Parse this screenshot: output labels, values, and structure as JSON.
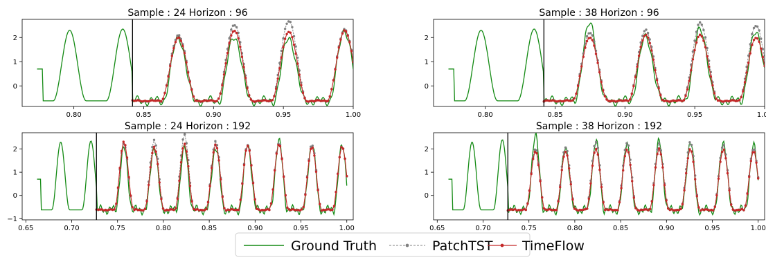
{
  "legend": {
    "items": [
      {
        "label": "Ground Truth",
        "color": "#138a13",
        "marker": "none",
        "style": "solid"
      },
      {
        "label": "PatchTST",
        "color": "#808080",
        "marker": "circle",
        "style": "dashed"
      },
      {
        "label": "TimeFlow",
        "color": "#c42828",
        "marker": "circle",
        "style": "solid"
      }
    ]
  },
  "chart_data": [
    {
      "type": "line",
      "title": "Sample : 24 Horizon : 96",
      "xlim": [
        0.763,
        1.0
      ],
      "ylim": [
        -0.85,
        2.75
      ],
      "xticks": [
        0.8,
        0.85,
        0.9,
        0.95,
        1.0
      ],
      "xticklabels": [
        "0.80",
        "0.85",
        "0.90",
        "0.95",
        "1.00"
      ],
      "yticks": [
        0,
        1,
        2
      ],
      "yticklabels": [
        "0",
        "1",
        "2"
      ],
      "forecast_start": 0.842,
      "peaks": [
        0.875,
        0.915,
        0.954,
        0.994
      ],
      "peak_heights": {
        "ground_truth": [
          2.0,
          2.05,
          2.0,
          2.3
        ],
        "patchtst": [
          2.1,
          2.55,
          2.7,
          2.35
        ],
        "timeflow": [
          2.0,
          2.3,
          2.25,
          2.3
        ]
      },
      "series": [
        {
          "name": "Ground Truth",
          "history_peaks": [
            0.797,
            0.835
          ],
          "history_heights": [
            2.3,
            2.35
          ]
        },
        {
          "name": "PatchTST"
        },
        {
          "name": "TimeFlow"
        }
      ],
      "grid": false
    },
    {
      "type": "line",
      "title": "Sample : 38 Horizon : 96",
      "xlim": [
        0.763,
        1.0
      ],
      "ylim": [
        -0.85,
        2.75
      ],
      "xticks": [
        0.8,
        0.85,
        0.9,
        0.95,
        1.0
      ],
      "xticklabels": [
        "0.80",
        "0.85",
        "0.90",
        "0.95",
        "1.00"
      ],
      "yticks": [
        0,
        1,
        2
      ],
      "yticklabels": [
        "0",
        "1",
        "2"
      ],
      "forecast_start": 0.842,
      "peaks": [
        0.875,
        0.915,
        0.954,
        0.994
      ],
      "peak_heights": {
        "ground_truth": [
          2.55,
          2.0,
          2.3,
          2.2
        ],
        "patchtst": [
          2.2,
          2.3,
          2.6,
          2.5
        ],
        "timeflow": [
          2.0,
          2.1,
          2.1,
          2.0
        ]
      },
      "series": [
        {
          "name": "Ground Truth",
          "history_peaks": [
            0.797,
            0.835
          ],
          "history_heights": [
            2.3,
            2.35
          ]
        },
        {
          "name": "PatchTST"
        },
        {
          "name": "TimeFlow"
        }
      ],
      "grid": false
    },
    {
      "type": "line",
      "title": "Sample : 24 Horizon : 192",
      "xlim": [
        0.646,
        1.007
      ],
      "ylim": [
        -1.05,
        2.7
      ],
      "xticks": [
        0.65,
        0.7,
        0.75,
        0.8,
        0.85,
        0.9,
        0.95,
        1.0
      ],
      "xticklabels": [
        "0.65",
        "0.70",
        "0.75",
        "0.80",
        "0.85",
        "0.90",
        "0.95",
        "1.00"
      ],
      "yticks": [
        -1,
        0,
        1,
        2
      ],
      "yticklabels": [
        "−1",
        "0",
        "1",
        "2"
      ],
      "forecast_start": 0.727,
      "peaks": [
        0.757,
        0.79,
        0.823,
        0.857,
        0.892,
        0.926,
        0.962,
        0.995
      ],
      "peak_heights": {
        "ground_truth": [
          2.0,
          2.1,
          2.0,
          2.1,
          2.2,
          2.3,
          2.25,
          2.1
        ],
        "patchtst": [
          2.2,
          2.4,
          2.6,
          2.35,
          2.2,
          2.25,
          2.2,
          2.1
        ],
        "timeflow": [
          2.3,
          2.1,
          2.2,
          2.2,
          2.15,
          2.2,
          2.1,
          2.1
        ]
      },
      "series": [
        {
          "name": "Ground Truth",
          "history_peaks": [
            0.688,
            0.721
          ],
          "history_heights": [
            2.3,
            2.35
          ]
        },
        {
          "name": "PatchTST"
        },
        {
          "name": "TimeFlow"
        }
      ],
      "grid": false
    },
    {
      "type": "line",
      "title": "Sample : 38 Horizon : 192",
      "xlim": [
        0.646,
        1.007
      ],
      "ylim": [
        -1.05,
        2.7
      ],
      "xticks": [
        0.65,
        0.7,
        0.75,
        0.8,
        0.85,
        0.9,
        0.95,
        1.0
      ],
      "xticklabels": [
        "0.65",
        "0.70",
        "0.75",
        "0.80",
        "0.85",
        "0.90",
        "0.95",
        "1.00"
      ],
      "yticks": [
        0,
        1,
        2
      ],
      "yticklabels": [
        "0",
        "1",
        "2"
      ],
      "forecast_start": 0.727,
      "peaks": [
        0.757,
        0.79,
        0.823,
        0.857,
        0.892,
        0.926,
        0.962,
        0.995
      ],
      "peak_heights": {
        "ground_truth": [
          2.55,
          2.1,
          2.3,
          2.3,
          2.3,
          2.3,
          2.35,
          2.1
        ],
        "patchtst": [
          2.0,
          2.1,
          2.3,
          2.3,
          2.2,
          2.3,
          2.2,
          2.0
        ],
        "timeflow": [
          1.9,
          1.9,
          2.0,
          2.0,
          2.0,
          2.0,
          2.0,
          1.9
        ]
      },
      "series": [
        {
          "name": "Ground Truth",
          "history_peaks": [
            0.688,
            0.721
          ],
          "history_heights": [
            2.3,
            2.4
          ]
        },
        {
          "name": "PatchTST"
        },
        {
          "name": "TimeFlow"
        }
      ],
      "grid": false
    }
  ]
}
